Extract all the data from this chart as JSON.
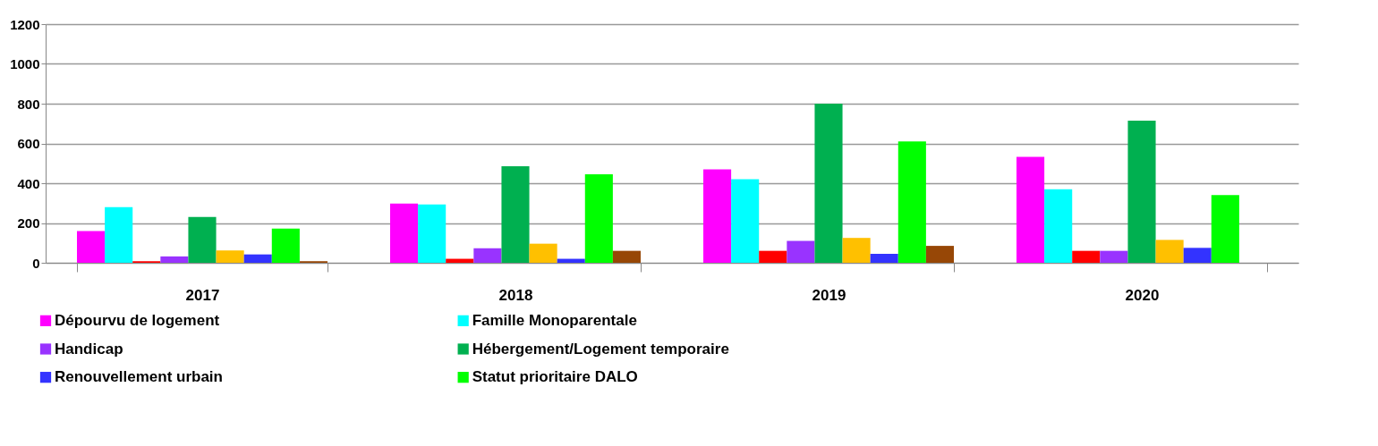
{
  "chart_data": {
    "type": "bar",
    "categories": [
      "2017",
      "2018",
      "2019",
      "2020"
    ],
    "series": [
      {
        "name": "Dépourvu de logement",
        "color": "#ff00ff",
        "values": [
          160,
          298,
          470,
          533
        ]
      },
      {
        "name": "Famille Monoparentale",
        "color": "#00ffff",
        "values": [
          280,
          293,
          420,
          370
        ]
      },
      {
        "color": "#ff0000",
        "values": [
          8,
          20,
          60,
          60
        ]
      },
      {
        "name": "Handicap",
        "color": "#9933ff",
        "values": [
          32,
          73,
          110,
          60
        ]
      },
      {
        "name": "Hébergement/Logement temporaire",
        "color": "#00b050",
        "values": [
          230,
          485,
          800,
          715
        ]
      },
      {
        "color": "#ffc000",
        "values": [
          62,
          96,
          125,
          115
        ]
      },
      {
        "name": "Renouvellement urbain",
        "color": "#3333ff",
        "values": [
          42,
          20,
          45,
          75
        ]
      },
      {
        "name": "Statut prioritaire DALO",
        "color": "#00ff00",
        "values": [
          172,
          445,
          610,
          340
        ]
      },
      {
        "color": "#974706",
        "values": [
          8,
          60,
          85,
          null
        ]
      }
    ],
    "ylim": [
      0,
      1200
    ],
    "yticks": [
      0,
      200,
      400,
      600,
      800,
      1000,
      1200
    ],
    "grid": "y",
    "legend": "bottom"
  }
}
